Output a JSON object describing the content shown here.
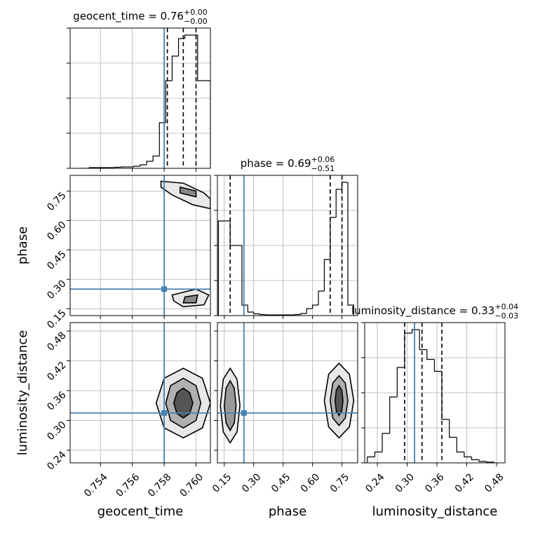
{
  "chart_data": {
    "type": "corner",
    "truth_color": "#4682b4",
    "hist_color": "#000000",
    "grid": true,
    "hist_ylim": [
      0,
      4000
    ],
    "hist_yticks": [
      0,
      1000,
      2000,
      3000,
      4000
    ],
    "parameters": [
      {
        "name": "geocent_time",
        "title": "geocent_time = 0.76",
        "title_upper": "+0.00",
        "title_lower": "−0.00",
        "lim": [
          0.7521,
          0.7609
        ],
        "ticks": [
          0.754,
          0.756,
          0.758,
          {
            "value": 0.76,
            "label": "0.760"
          }
        ],
        "truth": 0.758,
        "quantiles": [
          0.7582,
          0.7592,
          0.76
        ],
        "bins": [
          0.7525,
          0.7529,
          0.7533,
          0.7537,
          0.7541,
          0.7545,
          0.7549,
          0.7553,
          0.7557,
          0.7561,
          0.7565,
          0.7569,
          0.7573,
          0.7577,
          0.7581,
          0.7585,
          0.7589,
          0.7593,
          0.7597,
          0.7601,
          0.7605,
          0.7609
        ],
        "counts": [
          0,
          0,
          20,
          20,
          20,
          20,
          30,
          40,
          40,
          60,
          100,
          200,
          350,
          1300,
          2500,
          3200,
          3700,
          3800,
          3800,
          2500,
          2500
        ]
      },
      {
        "name": "phase",
        "title": "phase = 0.69",
        "title_upper": "+0.06",
        "title_lower": "−0.51",
        "lim": [
          0.115,
          0.83
        ],
        "ticks": [
          0.15,
          {
            "value": 0.3,
            "label": "0.30"
          },
          0.45,
          {
            "value": 0.6,
            "label": "0.60"
          },
          0.75
        ],
        "truth": 0.25,
        "quantiles": [
          0.18,
          0.69,
          0.75
        ],
        "bins": [
          0.12,
          0.15,
          0.18,
          0.21,
          0.24,
          0.27,
          0.3,
          0.33,
          0.36,
          0.39,
          0.42,
          0.45,
          0.48,
          0.51,
          0.54,
          0.57,
          0.6,
          0.63,
          0.66,
          0.69,
          0.72,
          0.75,
          0.78,
          0.81
        ],
        "counts": [
          2700,
          2700,
          2000,
          2000,
          300,
          100,
          50,
          30,
          20,
          20,
          20,
          20,
          20,
          30,
          60,
          200,
          300,
          700,
          1600,
          2800,
          3600,
          3800,
          300
        ]
      },
      {
        "name": "luminosity_distance",
        "title": "luminosity_distance = 0.33",
        "title_upper": "+0.04",
        "title_lower": "−0.03",
        "lim": [
          0.2146,
          0.497
        ],
        "ticks": [
          0.24,
          {
            "value": 0.3,
            "label": "0.30"
          },
          0.36,
          0.42,
          0.48
        ],
        "truth": 0.315,
        "quantiles": [
          0.295,
          0.33,
          0.37
        ],
        "bins": [
          0.22,
          0.235,
          0.25,
          0.265,
          0.28,
          0.295,
          0.31,
          0.325,
          0.34,
          0.355,
          0.37,
          0.385,
          0.4,
          0.415,
          0.43,
          0.445,
          0.46,
          0.475
        ],
        "counts": [
          170,
          310,
          840,
          1880,
          2720,
          3700,
          3800,
          3230,
          2950,
          2610,
          1240,
          730,
          310,
          170,
          90,
          40,
          20
        ]
      }
    ],
    "contours": [
      [
        {
          "fill": "#e8e8e8",
          "x": [
            0.7578,
            0.7592,
            0.7605,
            0.7609,
            0.7609,
            0.7598,
            0.7585,
            0.7578
          ],
          "y": [
            0.8,
            0.79,
            0.74,
            0.71,
            0.66,
            0.68,
            0.73,
            0.77
          ]
        },
        {
          "fill": "#888888",
          "x": [
            0.759,
            0.76,
            0.76,
            0.759
          ],
          "y": [
            0.77,
            0.75,
            0.72,
            0.74
          ]
        },
        {
          "fill": "#e8e8e8",
          "x": [
            0.7585,
            0.76,
            0.7608,
            0.7605,
            0.7592,
            0.7586
          ],
          "y": [
            0.22,
            0.25,
            0.22,
            0.17,
            0.16,
            0.19
          ]
        },
        {
          "fill": "#888888",
          "x": [
            0.7593,
            0.7601,
            0.76,
            0.7592
          ],
          "y": [
            0.21,
            0.22,
            0.18,
            0.18
          ]
        }
      ],
      [
        {
          "fill": "#e8e8e8",
          "x": [
            0.7609,
            0.7604,
            0.7592,
            0.758,
            0.7575,
            0.758,
            0.7592,
            0.7604
          ],
          "y": [
            0.335,
            0.385,
            0.405,
            0.385,
            0.335,
            0.285,
            0.265,
            0.285
          ]
        },
        {
          "fill": "#b0b0b0",
          "x": [
            0.7603,
            0.76,
            0.7592,
            0.7584,
            0.7581,
            0.7584,
            0.7592,
            0.76
          ],
          "y": [
            0.335,
            0.37,
            0.385,
            0.37,
            0.335,
            0.3,
            0.285,
            0.3
          ]
        },
        {
          "fill": "#555555",
          "x": [
            0.7598,
            0.7596,
            0.7592,
            0.7588,
            0.7586,
            0.7588,
            0.7592,
            0.7596
          ],
          "y": [
            0.335,
            0.356,
            0.365,
            0.356,
            0.335,
            0.314,
            0.305,
            0.314
          ]
        }
      ],
      [
        {
          "fill": "#e8e8e8",
          "x": [
            0.23,
            0.215,
            0.18,
            0.145,
            0.13,
            0.145,
            0.18,
            0.215
          ],
          "y": [
            0.33,
            0.383,
            0.405,
            0.383,
            0.33,
            0.277,
            0.255,
            0.277
          ]
        },
        {
          "fill": "#999999",
          "x": [
            0.21,
            0.201,
            0.18,
            0.159,
            0.15,
            0.159,
            0.18,
            0.201
          ],
          "y": [
            0.33,
            0.365,
            0.38,
            0.365,
            0.33,
            0.295,
            0.28,
            0.295
          ]
        },
        {
          "fill": "#e8e8e8",
          "x": [
            0.81,
            0.788,
            0.735,
            0.682,
            0.66,
            0.682,
            0.735,
            0.788
          ],
          "y": [
            0.34,
            0.393,
            0.415,
            0.393,
            0.34,
            0.287,
            0.265,
            0.287
          ]
        },
        {
          "fill": "#b0b0b0",
          "x": [
            0.78,
            0.767,
            0.735,
            0.703,
            0.69,
            0.703,
            0.735,
            0.767
          ],
          "y": [
            0.34,
            0.375,
            0.39,
            0.375,
            0.34,
            0.305,
            0.29,
            0.305
          ]
        },
        {
          "fill": "#555555",
          "x": [
            0.755,
            0.749,
            0.735,
            0.721,
            0.715,
            0.721,
            0.735,
            0.749
          ],
          "y": [
            0.34,
            0.361,
            0.37,
            0.361,
            0.34,
            0.319,
            0.31,
            0.319
          ]
        }
      ]
    ]
  }
}
